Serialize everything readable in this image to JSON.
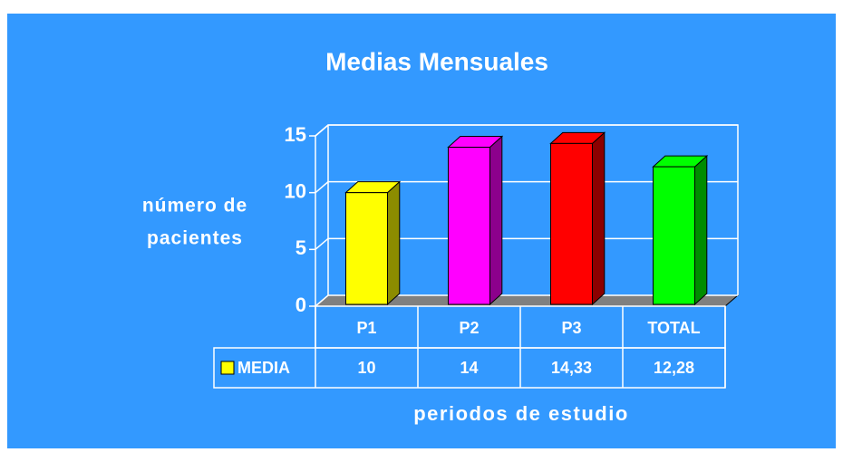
{
  "chart_data": {
    "type": "bar",
    "title": "Medias Mensuales",
    "ylabel": [
      "número de",
      "pacientes"
    ],
    "xlabel": "periodos de estudio",
    "categories": [
      "P1",
      "P2",
      "P3",
      "TOTAL"
    ],
    "series": [
      {
        "name": "MEDIA",
        "colors": [
          "#ffff00",
          "#ff00ff",
          "#ff0000",
          "#00ff00"
        ],
        "values": [
          10,
          14,
          14.33,
          12.28
        ],
        "value_labels": [
          "10",
          "14",
          "14,33",
          "12,28"
        ]
      }
    ],
    "ylim": [
      0,
      15
    ],
    "yticks": [
      0,
      5,
      10,
      15
    ],
    "grid": true
  }
}
